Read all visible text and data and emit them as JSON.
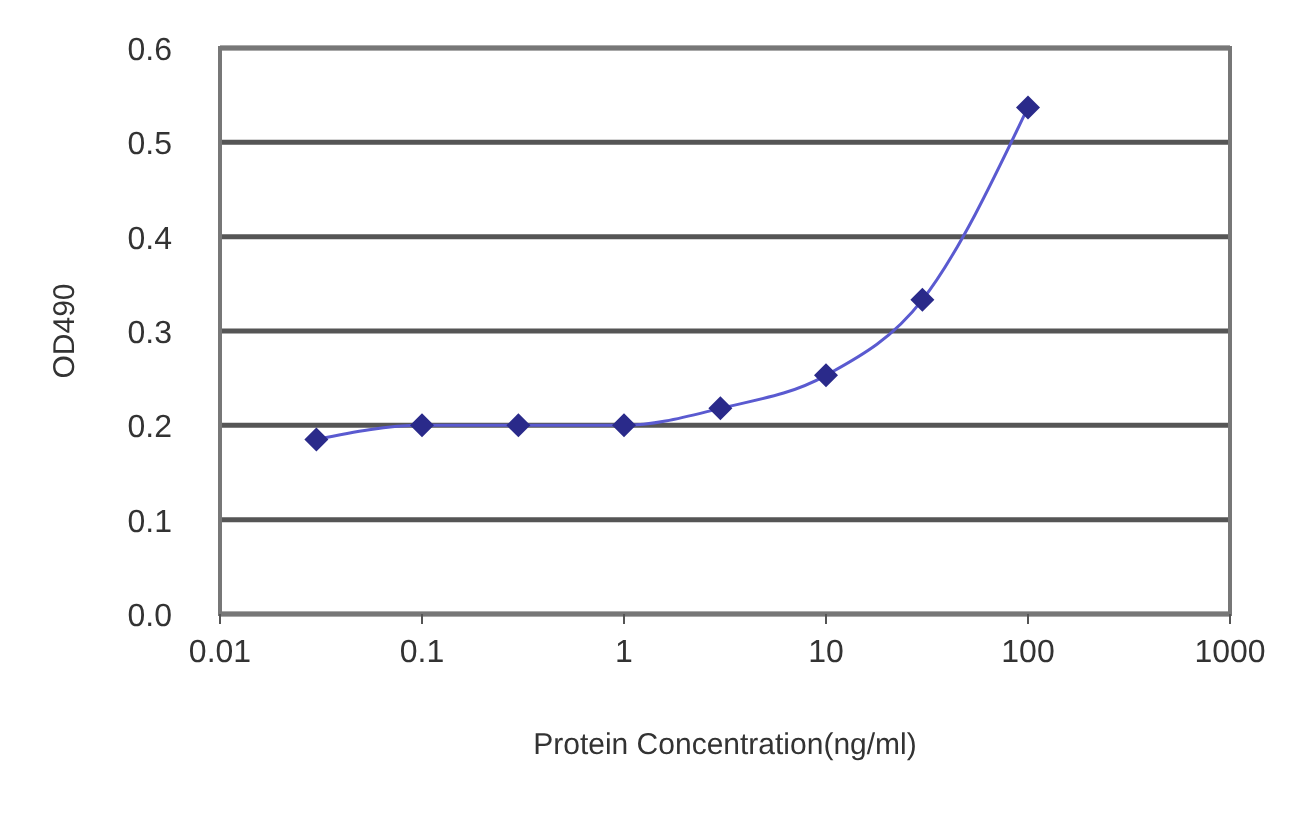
{
  "chart_data": {
    "type": "line",
    "xlabel": "Protein Concentration(ng/ml)",
    "ylabel": "OD490",
    "log": "x",
    "x": [
      0.03,
      0.1,
      0.3,
      1,
      3,
      10,
      30,
      100
    ],
    "series": [
      {
        "color": "#2a2a8a",
        "values": [
          0.185,
          0.2,
          0.2,
          0.2,
          0.218,
          0.253,
          0.333,
          0.537
        ]
      }
    ],
    "xlim": [
      0.01,
      1000
    ],
    "xticks": [
      {
        "value": 0.01,
        "label": "0.01"
      },
      {
        "value": 0.1,
        "label": "0.1"
      },
      {
        "value": 1,
        "label": "1"
      },
      {
        "value": 10,
        "label": "10"
      },
      {
        "value": 100,
        "label": "100"
      },
      {
        "value": 1000,
        "label": "1000"
      }
    ],
    "ylim": [
      0,
      0.6
    ],
    "yticks": [
      {
        "value": 0,
        "label": "0.0"
      },
      {
        "value": 0.1,
        "label": "0.1"
      },
      {
        "value": 0.2,
        "label": "0.2"
      },
      {
        "value": 0.3,
        "label": "0.3"
      },
      {
        "value": 0.4,
        "label": "0.4"
      },
      {
        "value": 0.5,
        "label": "0.5"
      },
      {
        "value": 0.6,
        "label": "0.6"
      }
    ],
    "grid": "y",
    "marker": "diamond",
    "line_style": "solid"
  }
}
